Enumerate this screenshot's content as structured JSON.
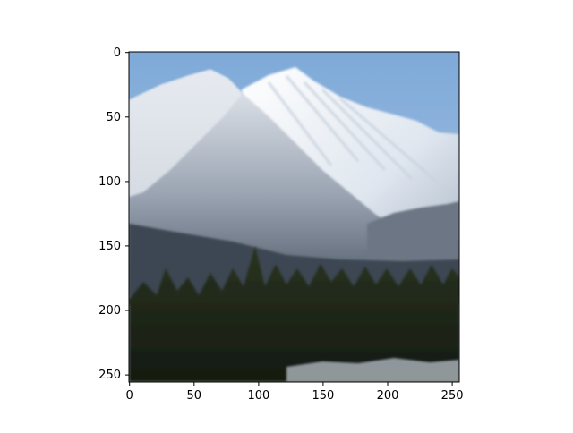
{
  "figure": {
    "image_description": "Snow-covered mountain peaks under a pale blue sky with a dark coniferous forest in the foreground",
    "x_ticks": [
      "0",
      "50",
      "100",
      "150",
      "200",
      "250"
    ],
    "y_ticks": [
      "0",
      "50",
      "100",
      "150",
      "200",
      "250"
    ],
    "x_range": [
      0,
      256
    ],
    "y_range": [
      0,
      256
    ],
    "colors": {
      "sky": "#8fb6de",
      "snow": "#f2f5f9",
      "rock": "#5d6878",
      "forest": "#1f2818"
    }
  }
}
